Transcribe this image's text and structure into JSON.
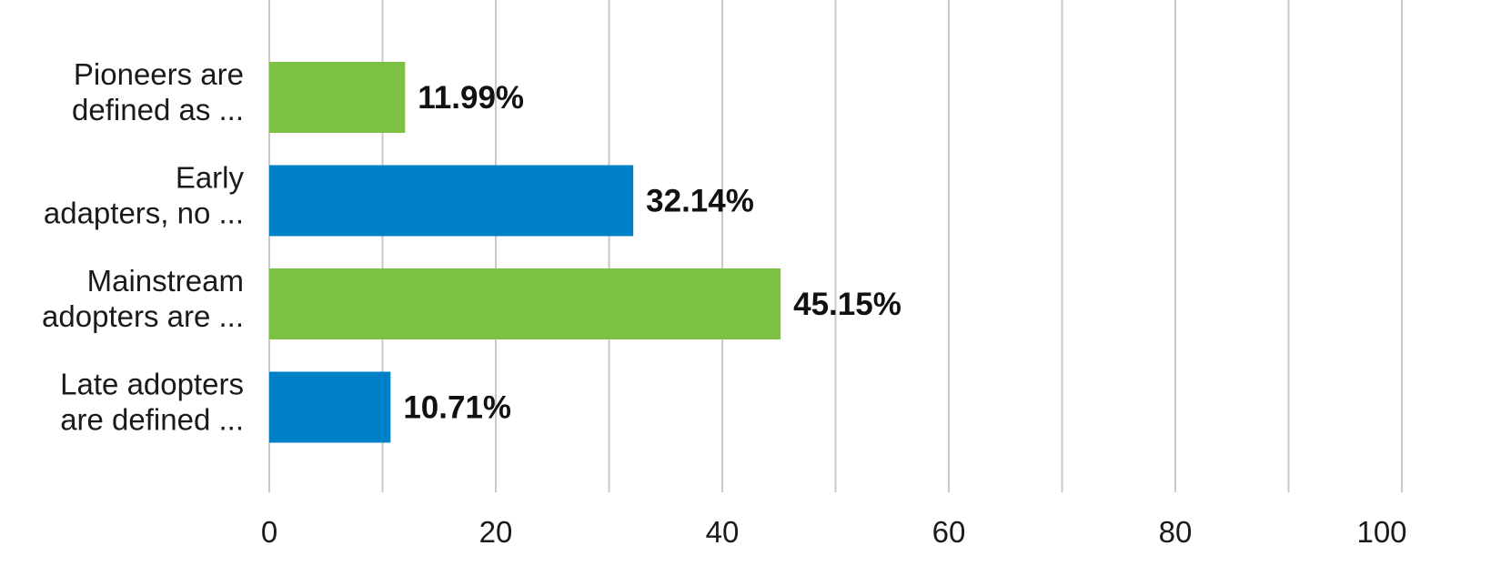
{
  "chart_data": {
    "type": "bar",
    "orientation": "horizontal",
    "categories": [
      [
        "Pioneers are",
        "defined as ..."
      ],
      [
        "Early",
        "adapters, no ..."
      ],
      [
        "Mainstream",
        "adopters are ..."
      ],
      [
        "Late adopters",
        "are defined ..."
      ]
    ],
    "values": [
      11.99,
      32.14,
      45.15,
      10.71
    ],
    "value_labels": [
      "11.99%",
      "32.14%",
      "45.15%",
      "10.71%"
    ],
    "bar_colors": [
      "#7dc142",
      "#0080c6",
      "#7dc142",
      "#0080c6"
    ],
    "xlim": [
      0,
      100
    ],
    "x_ticks": [
      0,
      20,
      40,
      60,
      80,
      100
    ],
    "minor_grid_step": 10,
    "grid": true,
    "gridline_color": "#c8c8c8",
    "title": "",
    "xlabel": "",
    "ylabel": ""
  }
}
